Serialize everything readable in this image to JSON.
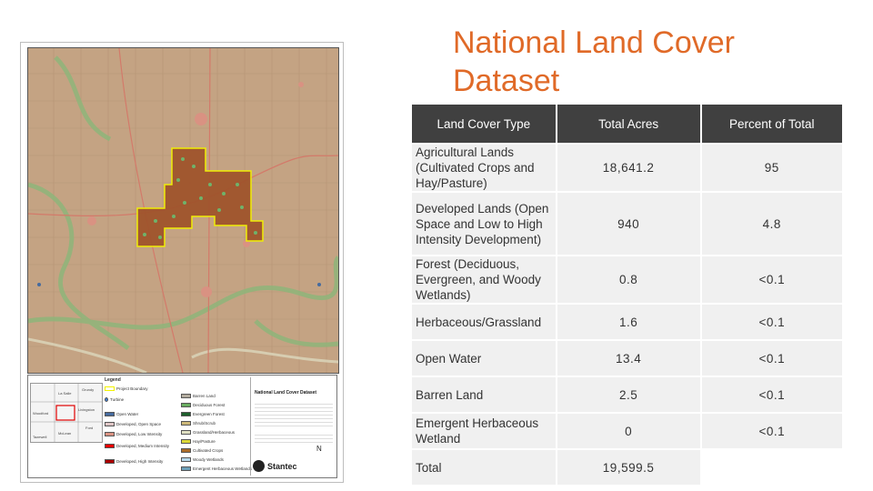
{
  "title": "National Land Cover Dataset",
  "table": {
    "headers": [
      "Land Cover Type",
      "Total Acres",
      "Percent of Total"
    ],
    "rows": [
      {
        "type": "Agricultural Lands (Cultivated Crops and Hay/Pasture)",
        "acres": "18,641.2",
        "percent": "95"
      },
      {
        "type": "Developed Lands (Open Space and Low to High Intensity Development)",
        "acres": "940",
        "percent": "4.8"
      },
      {
        "type": "Forest (Deciduous, Evergreen, and Woody Wetlands)",
        "acres": "0.8",
        "percent": "<0.1"
      },
      {
        "type": "Herbaceous/Grassland",
        "acres": "1.6",
        "percent": "<0.1"
      },
      {
        "type": "Open Water",
        "acres": "13.4",
        "percent": "<0.1"
      },
      {
        "type": "Barren Land",
        "acres": "2.5",
        "percent": "<0.1"
      },
      {
        "type": "Emergent Herbaceous Wetland",
        "acres": "0",
        "percent": "<0.1"
      },
      {
        "type": "Total",
        "acres": "19,599.5",
        "percent": ""
      }
    ]
  },
  "map": {
    "legend_title": "Legend",
    "title_block_name": "National Land Cover Dataset",
    "company": "Stantec",
    "north_symbol": "N",
    "inset_labels": [
      "La Salle",
      "Livingston",
      "Grundy",
      "Woodford",
      "McLean",
      "Tazewell",
      "Ford"
    ],
    "legend_left": [
      {
        "label": "Project Boundary",
        "color": "#f2f200"
      },
      {
        "label": "Turbine",
        "color": "#3a7dd8"
      },
      {
        "label": "Open Water",
        "color": "#466b9f"
      },
      {
        "label": "Developed, Open Space",
        "color": "#dec5c5"
      },
      {
        "label": "Developed, Low Intensity",
        "color": "#d99282"
      },
      {
        "label": "Developed, Medium Intensity",
        "color": "#eb0000"
      },
      {
        "label": "Developed, High Intensity",
        "color": "#ab0000"
      }
    ],
    "legend_right": [
      {
        "label": "Barren Land",
        "color": "#b3ac9f"
      },
      {
        "label": "Deciduous Forest",
        "color": "#68ab5f"
      },
      {
        "label": "Evergreen Forest",
        "color": "#1c5f2c"
      },
      {
        "label": "Shrub/Scrub",
        "color": "#ccb879"
      },
      {
        "label": "Grassland/Herbaceous",
        "color": "#dfdfc2"
      },
      {
        "label": "Hay/Pasture",
        "color": "#dcd939"
      },
      {
        "label": "Cultivated Crops",
        "color": "#ab6c28"
      },
      {
        "label": "Woody Wetlands",
        "color": "#b8d9eb"
      },
      {
        "label": "Emergent Herbaceous Wetlands",
        "color": "#6c9fb8"
      }
    ]
  }
}
